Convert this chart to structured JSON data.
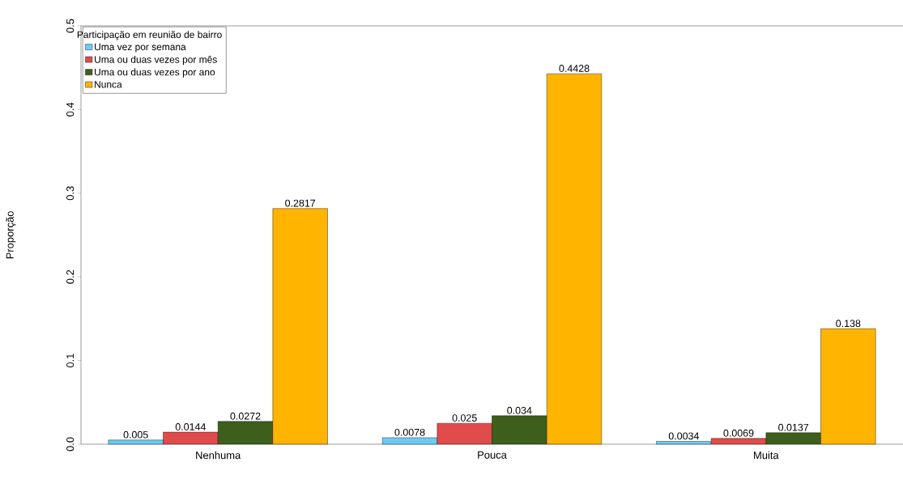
{
  "chart_data": {
    "type": "bar",
    "ylabel": "Proporção",
    "legend_title": "Participação em reunião de bairro",
    "legend": "top left",
    "categories": [
      "Nenhuma",
      "Pouca",
      "Muita"
    ],
    "ylim": [
      0,
      0.5
    ],
    "yticks": [
      {
        "value": 0,
        "label": "0.0"
      },
      0.1,
      0.2,
      0.3,
      0.4,
      0.5
    ],
    "data_labels": true,
    "series": [
      {
        "name": "Uma vez por semana",
        "color": "#6ccbf2",
        "values": [
          0.005,
          0.0078,
          0.0034
        ]
      },
      {
        "name": "Uma ou duas vezes por mês",
        "color": "#e04b4b",
        "values": [
          0.0144,
          0.025,
          0.0069
        ]
      },
      {
        "name": "Uma ou duas vezes por ano",
        "color": "#3e5e1c",
        "values": [
          0.0272,
          0.034,
          0.0137
        ]
      },
      {
        "name": "Nunca",
        "color": "#ffb400",
        "values": [
          0.2817,
          0.4428,
          0.138
        ]
      }
    ]
  }
}
